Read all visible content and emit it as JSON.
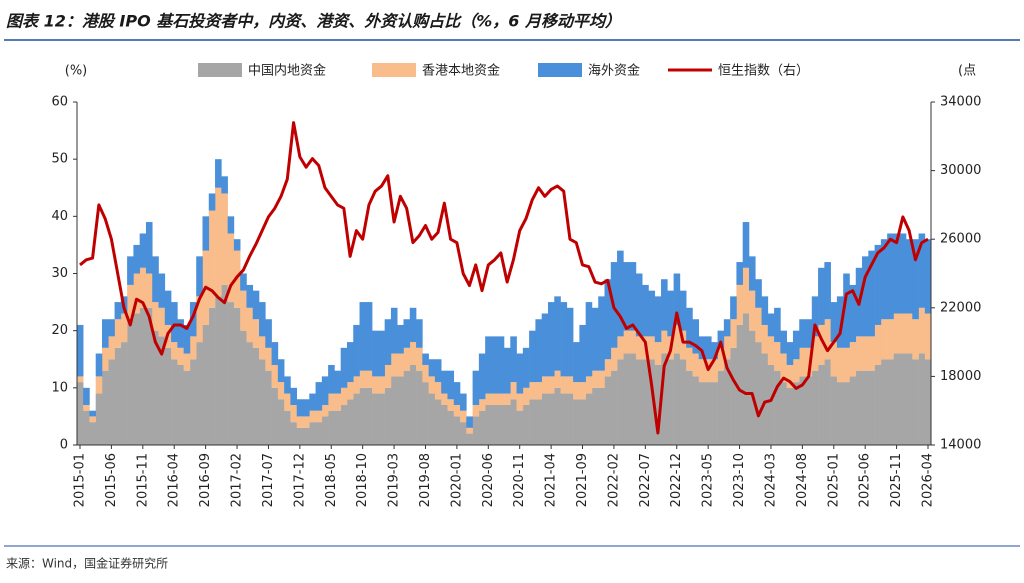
{
  "chart_data": {
    "type": "bar",
    "stacked": true,
    "title": "图表 12：港股 IPO 基石投资者中，内资、港资、外资认购占比（%，6 月移动平均）",
    "source": "来源：Wind，国金证券研究所",
    "y_label": "(%)",
    "y2_label": "(点",
    "categories": [
      "2015-01",
      null,
      null,
      null,
      null,
      "2015-06",
      null,
      null,
      null,
      null,
      "2015-11",
      null,
      null,
      null,
      null,
      "2016-04",
      null,
      null,
      null,
      null,
      "2016-09",
      null,
      null,
      null,
      null,
      "2017-02",
      null,
      null,
      null,
      null,
      "2017-07",
      null,
      null,
      null,
      null,
      "2017-12",
      null,
      null,
      null,
      null,
      "2018-05",
      null,
      null,
      null,
      null,
      "2018-10",
      null,
      null,
      null,
      null,
      "2019-03",
      null,
      null,
      null,
      null,
      "2019-08",
      null,
      null,
      null,
      null,
      "2020-01",
      null,
      null,
      null,
      null,
      "2020-06",
      null,
      null,
      null,
      null,
      "2020-11",
      null,
      null,
      null,
      null,
      "2021-04",
      null,
      null,
      null,
      null,
      "2021-09",
      null,
      null,
      null,
      null,
      "2022-02",
      null,
      null,
      null,
      null,
      "2022-07",
      null,
      null,
      null,
      null,
      "2022-12",
      null,
      null,
      null,
      null,
      "2023-05",
      null,
      null,
      null,
      null,
      "2023-10",
      null,
      null,
      null,
      null,
      "2024-03",
      null,
      null,
      null,
      null,
      "2024-08",
      null,
      null,
      null,
      null,
      "2025-01",
      null,
      null,
      null,
      null,
      "2025-06",
      null,
      null,
      null,
      null,
      "2025-11",
      null,
      null,
      null,
      null,
      "2026-04"
    ],
    "series": [
      {
        "name": "中国内地资金",
        "color": "#a6a6a6",
        "type": "bar",
        "values": [
          11,
          6,
          4,
          9,
          13,
          15,
          17,
          18,
          22,
          23,
          24,
          24,
          20,
          19,
          17,
          15,
          14,
          13,
          15,
          18,
          21,
          24,
          26,
          28,
          25,
          24,
          20,
          18,
          17,
          15,
          13,
          10,
          8,
          6,
          4,
          3,
          3,
          4,
          4,
          5,
          6,
          6,
          7,
          8,
          9,
          10,
          10,
          9,
          9,
          10,
          12,
          12,
          13,
          14,
          13,
          11,
          9,
          8,
          7,
          6,
          5,
          4,
          2,
          5,
          6,
          7,
          7,
          7,
          7,
          8,
          6,
          7,
          8,
          8,
          9,
          9,
          10,
          9,
          9,
          8,
          8,
          9,
          10,
          10,
          12,
          13,
          15,
          16,
          16,
          15,
          15,
          15,
          14,
          16,
          15,
          16,
          15,
          13,
          12,
          11,
          11,
          11,
          13,
          15,
          17,
          21,
          23,
          20,
          18,
          16,
          14,
          13,
          11,
          10,
          11,
          12,
          12,
          13,
          14,
          15,
          12,
          11,
          11,
          12,
          13,
          13,
          13,
          14,
          15,
          15,
          16,
          16,
          16,
          15,
          16,
          15
        ]
      },
      {
        "name": "香港本地资金",
        "color": "#f8bd8b",
        "type": "bar",
        "values": [
          1,
          1,
          1,
          3,
          4,
          4,
          5,
          5,
          6,
          7,
          7,
          6,
          5,
          5,
          4,
          3,
          3,
          3,
          4,
          8,
          13,
          17,
          19,
          16,
          12,
          10,
          7,
          6,
          5,
          4,
          4,
          4,
          3,
          3,
          3,
          2,
          2,
          2,
          2,
          2,
          3,
          3,
          3,
          3,
          3,
          3,
          3,
          3,
          3,
          4,
          4,
          4,
          4,
          4,
          4,
          3,
          3,
          3,
          2,
          2,
          2,
          2,
          1,
          2,
          2,
          2,
          2,
          2,
          2,
          3,
          3,
          3,
          3,
          3,
          3,
          3,
          3,
          3,
          3,
          3,
          3,
          3,
          3,
          3,
          3,
          4,
          4,
          4,
          4,
          4,
          4,
          4,
          4,
          4,
          4,
          5,
          5,
          4,
          4,
          4,
          4,
          4,
          4,
          4,
          5,
          7,
          8,
          7,
          6,
          5,
          5,
          5,
          5,
          4,
          4,
          5,
          5,
          6,
          7,
          7,
          6,
          6,
          6,
          6,
          6,
          6,
          6,
          7,
          7,
          7,
          7,
          7,
          7,
          7,
          8,
          8
        ]
      },
      {
        "name": "海外资金",
        "color": "#4a8fd9",
        "type": "bar",
        "values": [
          9,
          3,
          1,
          4,
          5,
          3,
          3,
          3,
          5,
          5,
          6,
          9,
          8,
          6,
          6,
          7,
          5,
          5,
          6,
          7,
          6,
          3,
          5,
          3,
          3,
          2,
          3,
          4,
          5,
          6,
          5,
          4,
          4,
          3,
          3,
          3,
          3,
          3,
          5,
          5,
          5,
          4,
          7,
          7,
          9,
          12,
          12,
          8,
          8,
          8,
          8,
          5,
          5,
          6,
          5,
          2,
          3,
          4,
          4,
          5,
          4,
          3,
          2,
          6,
          8,
          10,
          10,
          10,
          8,
          8,
          7,
          7,
          9,
          11,
          11,
          13,
          13,
          13,
          12,
          7,
          10,
          13,
          11,
          13,
          14,
          15,
          15,
          12,
          12,
          11,
          9,
          8,
          8,
          9,
          8,
          9,
          7,
          7,
          6,
          4,
          4,
          3,
          3,
          3,
          4,
          4,
          8,
          6,
          5,
          5,
          4,
          6,
          4,
          4,
          5,
          5,
          5,
          7,
          10,
          10,
          7,
          9,
          13,
          10,
          12,
          14,
          15,
          14,
          14,
          15,
          14,
          14,
          13,
          14,
          13,
          13
        ]
      },
      {
        "name": "恒生指数（右）",
        "color": "#c00000",
        "type": "line",
        "axis": "y2",
        "values": [
          24500,
          24800,
          24900,
          28000,
          27200,
          26000,
          24000,
          22000,
          21000,
          22500,
          22300,
          21500,
          20000,
          19300,
          20500,
          21000,
          21000,
          20800,
          21500,
          22500,
          23200,
          23000,
          22600,
          22300,
          23300,
          23800,
          24200,
          25000,
          25700,
          26500,
          27300,
          27800,
          28500,
          29500,
          32800,
          30800,
          30200,
          30700,
          30300,
          29000,
          28500,
          28000,
          27800,
          25000,
          26500,
          26000,
          28000,
          28800,
          29100,
          29700,
          27000,
          28500,
          27800,
          25800,
          26200,
          26800,
          26000,
          26400,
          28100,
          26000,
          25800,
          24000,
          23300,
          24500,
          23000,
          24500,
          24800,
          25200,
          23500,
          24800,
          26500,
          27200,
          28300,
          29000,
          28500,
          28900,
          29100,
          28800,
          26000,
          25800,
          24500,
          24400,
          23500,
          23400,
          23600,
          22000,
          21500,
          20800,
          21000,
          20500,
          20000,
          17500,
          14700,
          18600,
          19500,
          21700,
          20000,
          20000,
          19800,
          19500,
          18400,
          19000,
          20000,
          18500,
          17800,
          17200,
          17000,
          17000,
          15700,
          16500,
          16600,
          17400,
          17900,
          17700,
          17300,
          17500,
          18000,
          21000,
          20200,
          19500,
          20000,
          20500,
          22800,
          23000,
          22200,
          23800,
          24500,
          25200,
          25500,
          26000,
          25800,
          27300,
          26500,
          24800,
          25800,
          26000
        ]
      }
    ],
    "ylim": [
      0,
      60
    ],
    "yticks": [
      0,
      10,
      20,
      30,
      40,
      50,
      60
    ],
    "y2lim": [
      14000,
      34000
    ],
    "y2ticks": [
      14000,
      18000,
      22000,
      26000,
      30000,
      34000
    ]
  }
}
